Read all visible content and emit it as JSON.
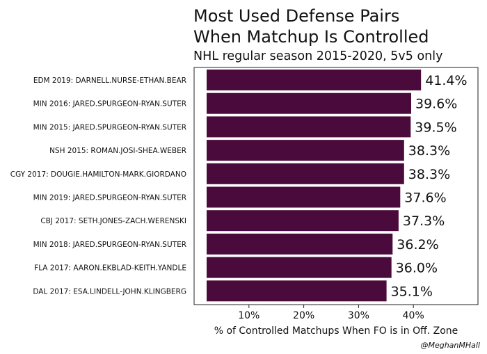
{
  "chart_data": {
    "type": "bar",
    "orientation": "horizontal",
    "title_lines": [
      "Most Used Defense Pairs",
      "When Matchup Is Controlled"
    ],
    "subtitle": "NHL regular season 2015-2020, 5v5 only",
    "xlabel": "% of Controlled Matchups When FO is in Off. Zone",
    "ylabel": "",
    "credit": "@MeghanMHall",
    "xlim": [
      0,
      0.46
    ],
    "xticks": [
      0.1,
      0.2,
      0.3,
      0.4
    ],
    "xtick_labels": [
      "10%",
      "20%",
      "30%",
      "40%"
    ],
    "categories": [
      "EDM 2019: DARNELL.NURSE-ETHAN.BEAR",
      "MIN 2016: JARED.SPURGEON-RYAN.SUTER",
      "MIN 2015: JARED.SPURGEON-RYAN.SUTER",
      "NSH 2015: ROMAN.JOSI-SHEA.WEBER",
      "CGY 2017: DOUGIE.HAMILTON-MARK.GIORDANO",
      "MIN 2019: JARED.SPURGEON-RYAN.SUTER",
      "CBJ 2017: SETH.JONES-ZACH.WERENSKI",
      "MIN 2018: JARED.SPURGEON-RYAN.SUTER",
      "FLA 2017: AARON.EKBLAD-KEITH.YANDLE",
      "DAL 2017: ESA.LINDELL-JOHN.KLINGBERG"
    ],
    "values": [
      0.414,
      0.396,
      0.395,
      0.383,
      0.383,
      0.376,
      0.373,
      0.362,
      0.36,
      0.351
    ],
    "value_labels": [
      "41.4%",
      "39.6%",
      "39.5%",
      "38.3%",
      "38.3%",
      "37.6%",
      "37.3%",
      "36.2%",
      "36.0%",
      "35.1%"
    ],
    "bar_color": "#4b0a3c",
    "grid": false
  }
}
